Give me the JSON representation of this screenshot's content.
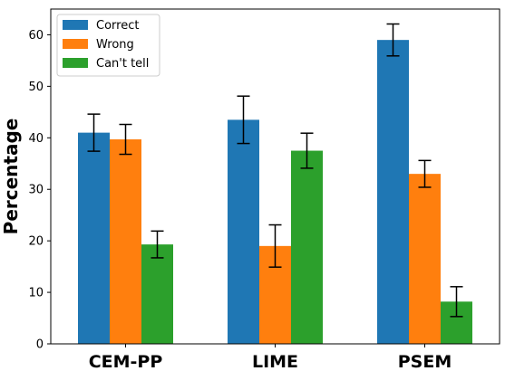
{
  "chart_data": {
    "type": "bar",
    "ylabel": "Percentage",
    "xlabel": "",
    "categories": [
      "CEM-PP",
      "LIME",
      "PSEM"
    ],
    "series": [
      {
        "name": "Correct",
        "color": "#1f77b4",
        "values": [
          41.0,
          43.5,
          59.0
        ],
        "errors": [
          3.6,
          4.6,
          3.1
        ]
      },
      {
        "name": "Wrong",
        "color": "#ff7f0e",
        "values": [
          39.7,
          19.0,
          33.0
        ],
        "errors": [
          2.9,
          4.1,
          2.6
        ]
      },
      {
        "name": "Can't tell",
        "color": "#2ca02c",
        "values": [
          19.3,
          37.5,
          8.2
        ],
        "errors": [
          2.6,
          3.4,
          2.9
        ]
      }
    ],
    "ylim": [
      0,
      65
    ],
    "yticks": [
      0,
      10,
      20,
      30,
      40,
      50,
      60
    ],
    "grid": false,
    "legend_position": "top-left"
  }
}
